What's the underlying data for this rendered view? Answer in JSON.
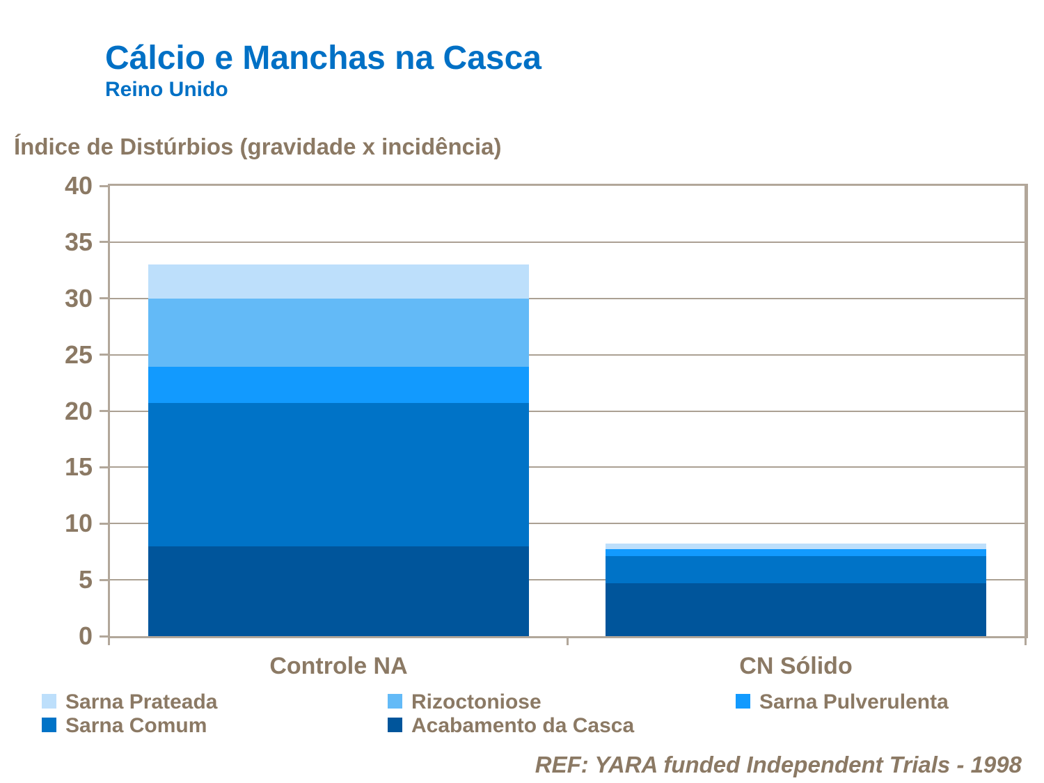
{
  "header": {
    "title": "Cálcio e Manchas na Casca",
    "subtitle": "Reino Unido"
  },
  "chart_data": {
    "type": "bar",
    "stacked": true,
    "title": "Cálcio e Manchas na Casca",
    "subtitle": "Reino Unido",
    "axis_title": "Índice de Distúrbios (gravidade x incidência)",
    "categories": [
      "Controle NA",
      "CN Sólido"
    ],
    "series": [
      {
        "name": "Acabamento da Casca",
        "color": "#00559B",
        "values": [
          8.0,
          4.7
        ]
      },
      {
        "name": "Sarna Comum",
        "color": "#0073C7",
        "values": [
          12.7,
          2.4
        ]
      },
      {
        "name": "Sarna Pulverulenta",
        "color": "#129AFE",
        "values": [
          3.2,
          0.6
        ]
      },
      {
        "name": "Rizoctoniose",
        "color": "#63BAF7",
        "values": [
          6.1,
          0.0
        ]
      },
      {
        "name": "Sarna Prateada",
        "color": "#BDDFFB",
        "values": [
          3.0,
          0.5
        ]
      }
    ],
    "totals": [
      33.0,
      8.2
    ],
    "ylim": [
      0,
      40
    ],
    "yticks": [
      0,
      5,
      10,
      15,
      20,
      25,
      30,
      35,
      40
    ],
    "grid": true,
    "legend_position": "bottom",
    "legend_order": [
      "Sarna Prateada",
      "Rizoctoniose",
      "Sarna Pulverulenta",
      "Sarna Comum",
      "Acabamento da Casca"
    ]
  },
  "footer": {
    "ref_text": "REF: YARA funded Independent Trials - 1998"
  },
  "colors": {
    "title_blue": "#0070C5",
    "text_brown": "#8B7964",
    "frame": "#B2A79A",
    "grid": "#ABA093"
  }
}
